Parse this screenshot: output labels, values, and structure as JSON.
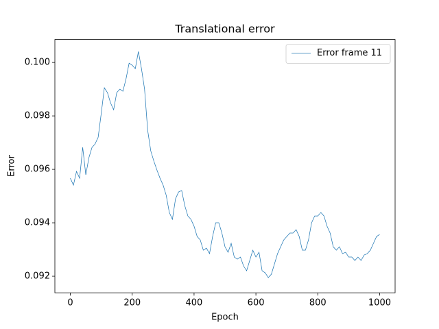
{
  "chart_data": {
    "type": "line",
    "title": "Translational error",
    "x_label": "Epoch",
    "y_label": "Error",
    "x": [
      0,
      10,
      20,
      30,
      40,
      50,
      60,
      70,
      80,
      90,
      100,
      110,
      120,
      130,
      140,
      150,
      160,
      170,
      180,
      190,
      200,
      210,
      220,
      230,
      240,
      250,
      260,
      270,
      280,
      290,
      300,
      310,
      320,
      330,
      340,
      350,
      360,
      370,
      380,
      390,
      400,
      410,
      420,
      430,
      440,
      450,
      460,
      470,
      480,
      490,
      500,
      510,
      520,
      530,
      540,
      550,
      560,
      570,
      580,
      590,
      600,
      610,
      620,
      630,
      640,
      650,
      660,
      670,
      680,
      690,
      700,
      710,
      720,
      730,
      740,
      750,
      760,
      770,
      780,
      790,
      800,
      810,
      820,
      830,
      840,
      850,
      860,
      870,
      880,
      890,
      900,
      910,
      920,
      930,
      940,
      950,
      960,
      970,
      980,
      990,
      1000
    ],
    "series": [
      {
        "name": "Error frame 11",
        "color": "#1f77b4",
        "values": [
          0.095667,
          0.09541,
          0.095923,
          0.095667,
          0.096821,
          0.095795,
          0.096436,
          0.096821,
          0.096949,
          0.097205,
          0.098103,
          0.099051,
          0.098872,
          0.098487,
          0.098231,
          0.098872,
          0.099,
          0.098923,
          0.099385,
          0.099974,
          0.099897,
          0.099769,
          0.10041,
          0.099769,
          0.099,
          0.097462,
          0.096692,
          0.096308,
          0.095974,
          0.095667,
          0.09541,
          0.095026,
          0.094385,
          0.094128,
          0.094897,
          0.095154,
          0.095205,
          0.094641,
          0.094256,
          0.094128,
          0.093872,
          0.093487,
          0.093359,
          0.092974,
          0.093051,
          0.092846,
          0.093487,
          0.094,
          0.094,
          0.093615,
          0.093103,
          0.092897,
          0.093231,
          0.092718,
          0.092641,
          0.092718,
          0.092385,
          0.092205,
          0.09259,
          0.092974,
          0.092718,
          0.092897,
          0.092205,
          0.092128,
          0.091949,
          0.092077,
          0.092462,
          0.092846,
          0.093103,
          0.093359,
          0.093487,
          0.093615,
          0.093615,
          0.093744,
          0.093487,
          0.092974,
          0.092974,
          0.093359,
          0.094,
          0.094256,
          0.094256,
          0.094385,
          0.094256,
          0.093872,
          0.093615,
          0.093103,
          0.092974,
          0.093103,
          0.092846,
          0.092897,
          0.092718,
          0.092718,
          0.09259,
          0.092718,
          0.09259,
          0.092795,
          0.092846,
          0.092974,
          0.093231,
          0.093487,
          0.093564
        ]
      }
    ],
    "xlim": [
      -50,
      1050
    ],
    "ylim": [
      0.09138,
      0.10086
    ],
    "xticks": [
      0,
      200,
      400,
      600,
      800,
      1000
    ],
    "yticks": [
      0.092,
      0.094,
      0.096,
      0.098,
      {
        "value": 0.1,
        "label": "0.100"
      }
    ],
    "legend": "upper right",
    "grid": false
  }
}
